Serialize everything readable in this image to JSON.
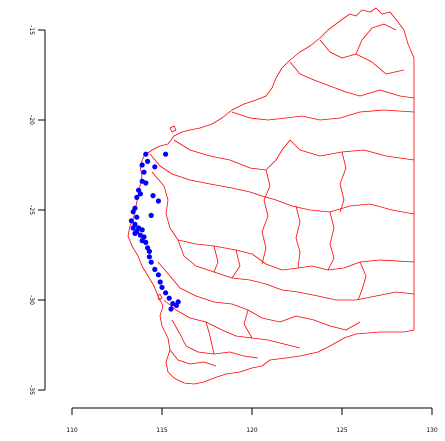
{
  "chart_data": {
    "type": "scatter",
    "title": "",
    "xlabel": "",
    "ylabel": "",
    "xlim": [
      110,
      130
    ],
    "ylim": [
      -35,
      -15
    ],
    "x_ticks": [
      110,
      115,
      120,
      125,
      130
    ],
    "y_ticks": [
      -15,
      -20,
      -25,
      -30,
      -35
    ],
    "x_tick_labels": [
      "110",
      "115",
      "120",
      "125",
      "130"
    ],
    "y_tick_labels": [
      "-15",
      "-20",
      "-25",
      "-30",
      "-35"
    ],
    "boundary_color": "#ff0000",
    "point_color": "#0000ff",
    "points": [
      [
        114.1,
        -21.9
      ],
      [
        114.2,
        -22.3
      ],
      [
        113.9,
        -22.5
      ],
      [
        114.6,
        -22.6
      ],
      [
        115.2,
        -21.9
      ],
      [
        114.0,
        -22.9
      ],
      [
        113.9,
        -23.4
      ],
      [
        114.1,
        -23.5
      ],
      [
        113.7,
        -23.9
      ],
      [
        113.8,
        -24.1
      ],
      [
        113.6,
        -24.3
      ],
      [
        114.5,
        -24.2
      ],
      [
        114.8,
        -24.5
      ],
      [
        113.5,
        -24.9
      ],
      [
        113.4,
        -25.1
      ],
      [
        113.6,
        -25.4
      ],
      [
        114.4,
        -25.3
      ],
      [
        113.3,
        -25.6
      ],
      [
        113.5,
        -25.8
      ],
      [
        113.4,
        -26.0
      ],
      [
        113.7,
        -26.0
      ],
      [
        113.6,
        -26.2
      ],
      [
        113.9,
        -26.1
      ],
      [
        113.5,
        -26.3
      ],
      [
        113.8,
        -26.4
      ],
      [
        114.0,
        -26.5
      ],
      [
        113.9,
        -26.7
      ],
      [
        114.1,
        -26.8
      ],
      [
        114.2,
        -27.1
      ],
      [
        114.3,
        -27.3
      ],
      [
        114.3,
        -27.6
      ],
      [
        114.4,
        -27.9
      ],
      [
        114.6,
        -28.3
      ],
      [
        114.8,
        -28.6
      ],
      [
        114.9,
        -29.0
      ],
      [
        115.0,
        -29.3
      ],
      [
        115.2,
        -29.6
      ],
      [
        115.4,
        -29.9
      ],
      [
        115.6,
        -30.2
      ],
      [
        115.8,
        -30.3
      ],
      [
        115.5,
        -30.5
      ],
      [
        115.9,
        -30.1
      ]
    ]
  }
}
